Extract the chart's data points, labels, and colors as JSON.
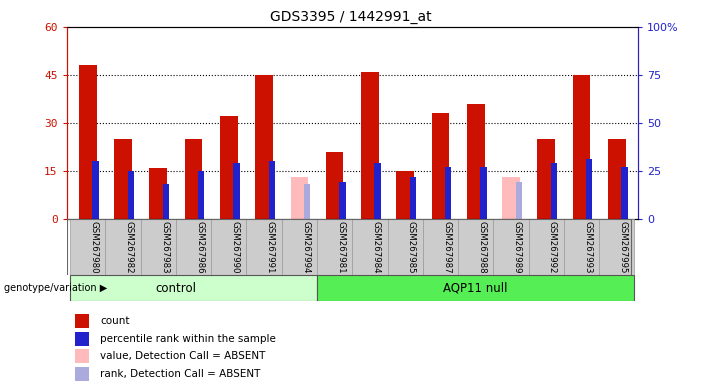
{
  "title": "GDS3395 / 1442991_at",
  "samples": [
    "GSM267980",
    "GSM267982",
    "GSM267983",
    "GSM267986",
    "GSM267990",
    "GSM267991",
    "GSM267994",
    "GSM267981",
    "GSM267984",
    "GSM267985",
    "GSM267987",
    "GSM267988",
    "GSM267989",
    "GSM267992",
    "GSM267993",
    "GSM267995"
  ],
  "count_values": [
    48,
    25,
    16,
    25,
    32,
    45,
    0,
    21,
    46,
    15,
    33,
    36,
    0,
    25,
    45,
    25
  ],
  "percentile_values": [
    30,
    25,
    18,
    25,
    29,
    30,
    0,
    19,
    29,
    22,
    27,
    27,
    0,
    29,
    31,
    27
  ],
  "absent_value": [
    0,
    0,
    0,
    0,
    0,
    0,
    13,
    0,
    0,
    0,
    0,
    0,
    13,
    0,
    0,
    0
  ],
  "absent_rank": [
    0,
    0,
    0,
    0,
    0,
    0,
    18,
    0,
    0,
    0,
    0,
    0,
    19,
    0,
    0,
    0
  ],
  "is_absent": [
    false,
    false,
    false,
    false,
    false,
    false,
    true,
    false,
    false,
    false,
    false,
    false,
    true,
    false,
    false,
    false
  ],
  "group_labels": [
    "control",
    "AQP11 null"
  ],
  "control_count": 7,
  "ylim_left": [
    0,
    60
  ],
  "ylim_right": [
    0,
    100
  ],
  "yticks_left": [
    0,
    15,
    30,
    45,
    60
  ],
  "ytick_labels_left": [
    "0",
    "15",
    "30",
    "45",
    "60"
  ],
  "yticks_right": [
    0,
    25,
    50,
    75,
    100
  ],
  "ytick_labels_right": [
    "0",
    "25",
    "50",
    "75",
    "100%"
  ],
  "bar_color_count": "#cc1100",
  "bar_color_percentile": "#2222cc",
  "bar_color_absent_value": "#ffbbbb",
  "bar_color_absent_rank": "#aaaadd",
  "bg_color": "#cccccc",
  "ctrl_color": "#ccffcc",
  "aqp_color": "#55ee55",
  "legend_items": [
    {
      "color": "#cc1100",
      "label": "count"
    },
    {
      "color": "#2222cc",
      "label": "percentile rank within the sample"
    },
    {
      "color": "#ffbbbb",
      "label": "value, Detection Call = ABSENT"
    },
    {
      "color": "#aaaadd",
      "label": "rank, Detection Call = ABSENT"
    }
  ]
}
